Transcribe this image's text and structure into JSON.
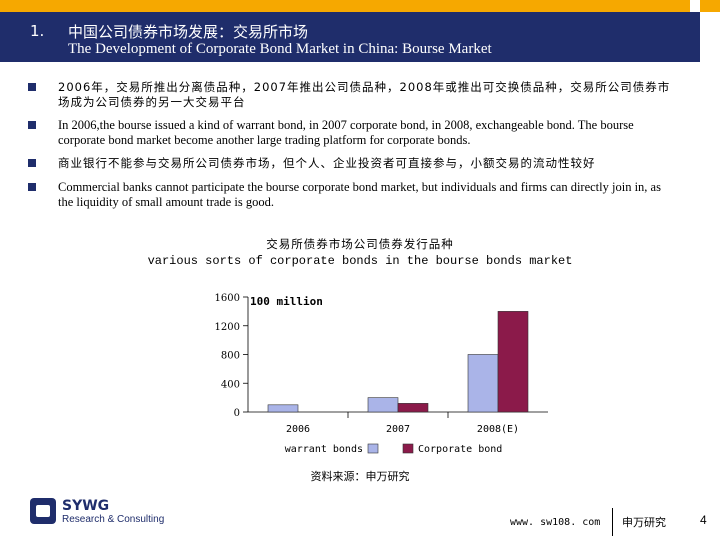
{
  "header": {
    "number": "1.",
    "title_cn": "中国公司债券市场发展：交易所市场",
    "title_en": "The Development of Corporate Bond Market in China: Bourse Market",
    "bar_color": "#f6a800",
    "title_bg": "#1f2d6b"
  },
  "bullets": [
    {
      "text": "2006年，交易所推出分离债品种，2007年推出公司债品种，2008年或推出可交换债品种，交易所公司债券市场成为公司债券的另一大交易平台",
      "lang": "cn"
    },
    {
      "text": "In 2006,the bourse issued a kind of warrant bond, in 2007 corporate bond, in 2008, exchangeable bond. The bourse corporate bond market become another large trading platform for corporate bonds.",
      "lang": "en"
    },
    {
      "text": "商业银行不能参与交易所公司债券市场，但个人、企业投资者可直接参与，小额交易的流动性较好",
      "lang": "cn"
    },
    {
      "text": "Commercial banks cannot participate the bourse corporate bond market, but individuals and firms can directly join in, as the liquidity of small amount trade is good.",
      "lang": "en"
    }
  ],
  "chart_data": {
    "type": "bar",
    "title": "交易所债券市场公司债券发行品种",
    "subtitle": "various sorts of corporate bonds in the bourse bonds market",
    "unit_label": "100 million",
    "categories": [
      "2006",
      "2007",
      "2008(E)"
    ],
    "series": [
      {
        "name": "warrant bonds",
        "values": [
          100,
          200,
          800
        ],
        "color": "#aab4e8"
      },
      {
        "name": "Corporate bond",
        "values": [
          0,
          120,
          1400
        ],
        "color": "#8b1a4a"
      }
    ],
    "yticks": [
      0,
      400,
      800,
      1200,
      1600
    ],
    "ylim": [
      0,
      1600
    ],
    "legend": "bottom"
  },
  "source": "资料来源：申万研究",
  "footer": {
    "logo_text": "SYWG",
    "logo_sub": "Research & Consulting",
    "url": "www. sw108. com",
    "company": "申万研究",
    "page": "4"
  }
}
